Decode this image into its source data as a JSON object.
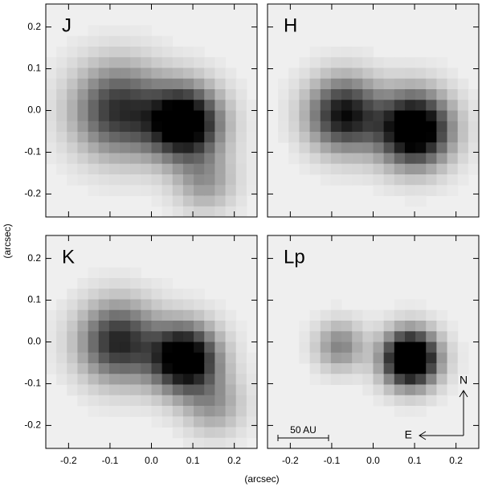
{
  "chart_data": [
    {
      "type": "image",
      "label": "J",
      "xlim": [
        -0.255,
        0.255
      ],
      "ylim": [
        -0.255,
        0.255
      ],
      "xticks": [
        -0.2,
        -0.1,
        {
          "value": 0,
          "label": "0.0"
        },
        0.1,
        0.2
      ],
      "yticks": [
        -0.2,
        -0.1,
        {
          "value": 0,
          "label": "0.0"
        },
        0.1,
        0.2
      ],
      "tick_labels": [
        "y"
      ]
    },
    {
      "type": "image",
      "label": "H",
      "xlim": [
        -0.255,
        0.255
      ],
      "ylim": [
        -0.255,
        0.255
      ],
      "xticks": [
        -0.2,
        -0.1,
        {
          "value": 0,
          "label": "0.0"
        },
        0.1,
        0.2
      ],
      "yticks": [
        -0.2,
        -0.1,
        {
          "value": 0,
          "label": "0.0"
        },
        0.1,
        0.2
      ],
      "tick_labels": []
    },
    {
      "type": "image",
      "label": "K",
      "xlim": [
        -0.255,
        0.255
      ],
      "ylim": [
        -0.255,
        0.255
      ],
      "xticks": [
        -0.2,
        -0.1,
        {
          "value": 0,
          "label": "0.0"
        },
        0.1,
        0.2
      ],
      "yticks": [
        -0.2,
        -0.1,
        {
          "value": 0,
          "label": "0.0"
        },
        0.1,
        0.2
      ],
      "tick_labels": [
        "x",
        "y"
      ]
    },
    {
      "type": "image",
      "label": "Lp",
      "xlim": [
        -0.255,
        0.255
      ],
      "ylim": [
        -0.255,
        0.255
      ],
      "xticks": [
        -0.2,
        -0.1,
        {
          "value": 0,
          "label": "0.0"
        },
        0.1,
        0.2
      ],
      "yticks": [
        -0.2,
        -0.1,
        {
          "value": 0,
          "label": "0.0"
        },
        0.1,
        0.2
      ],
      "tick_labels": [
        "x"
      ],
      "scale_bar": "50 AU",
      "north": "N",
      "east": "E"
    }
  ],
  "xlabel": "(arcsec)",
  "ylabel": "(arcsec)"
}
